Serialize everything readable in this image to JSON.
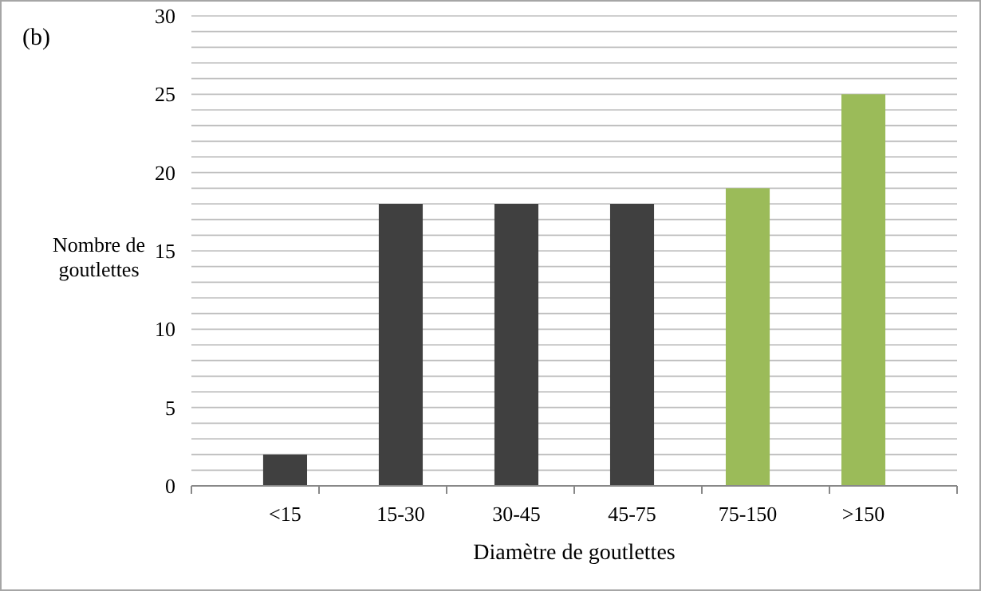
{
  "chart_data": {
    "type": "bar",
    "xlabel": "Diamètre de goutlettes",
    "ylabel": "Nombre de goutlettes",
    "categories": [
      "<15",
      "15-30",
      "30-45",
      "45-75",
      "75-150",
      ">150"
    ],
    "values": [
      2,
      18,
      18,
      18,
      19,
      25
    ],
    "colors": [
      "#404040",
      "#404040",
      "#404040",
      "#404040",
      "#9bbb59",
      "#9bbb59"
    ],
    "ylim": [
      0,
      30
    ],
    "yticks": [
      0,
      {
        "value": 1,
        "label": null
      },
      {
        "value": 2,
        "label": null
      },
      {
        "value": 3,
        "label": null
      },
      {
        "value": 4,
        "label": null
      },
      5,
      {
        "value": 6,
        "label": null
      },
      {
        "value": 7,
        "label": null
      },
      {
        "value": 8,
        "label": null
      },
      {
        "value": 9,
        "label": null
      },
      10,
      {
        "value": 11,
        "label": null
      },
      {
        "value": 12,
        "label": null
      },
      {
        "value": 13,
        "label": null
      },
      {
        "value": 14,
        "label": null
      },
      15,
      {
        "value": 16,
        "label": null
      },
      {
        "value": 17,
        "label": null
      },
      {
        "value": 18,
        "label": null
      },
      {
        "value": 19,
        "label": null
      },
      20,
      {
        "value": 21,
        "label": null
      },
      {
        "value": 22,
        "label": null
      },
      {
        "value": 23,
        "label": null
      },
      {
        "value": 24,
        "label": null
      },
      25,
      {
        "value": 26,
        "label": null
      },
      {
        "value": 27,
        "label": null
      },
      {
        "value": 28,
        "label": null
      },
      {
        "value": 29,
        "label": null
      },
      30
    ],
    "grid": "y",
    "annotations": [
      "(b)"
    ]
  }
}
